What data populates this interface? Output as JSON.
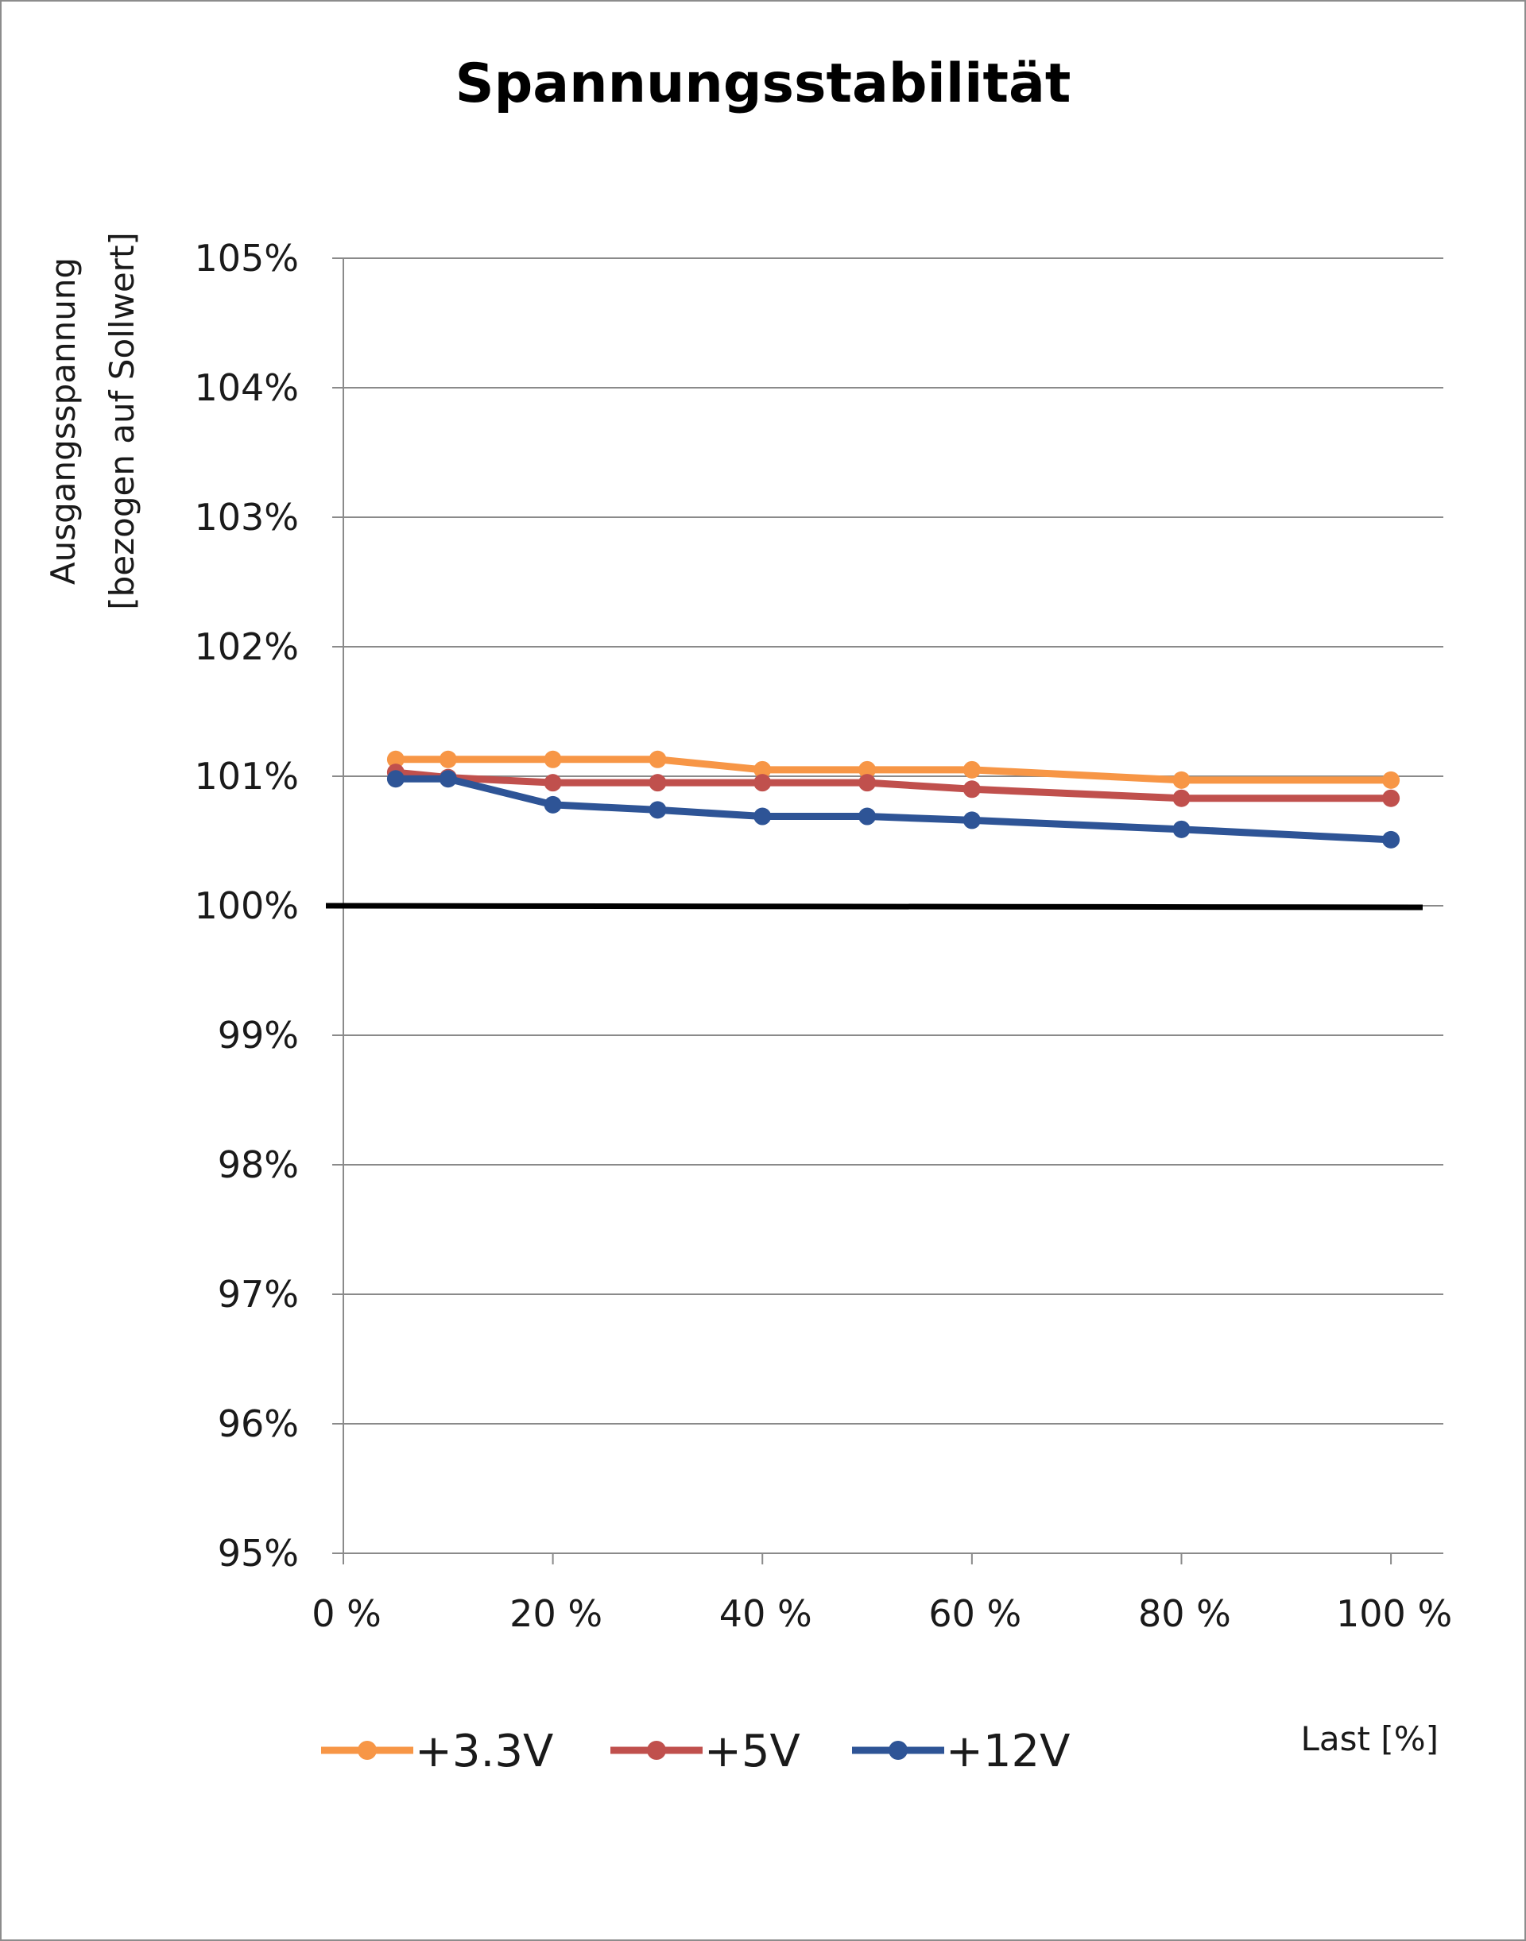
{
  "chart_data": {
    "type": "line",
    "title": "Spannungsstabilität",
    "ylabel_lines": [
      "Ausgangsspannung",
      "[bezogen auf Sollwert]"
    ],
    "xlabel": "Last [%]",
    "xlim": [
      0,
      105
    ],
    "ylim": [
      95,
      105
    ],
    "x_ticks": [
      0,
      20,
      40,
      60,
      80,
      100
    ],
    "x_tick_labels": [
      "0 %",
      "20 %",
      "40 %",
      "60 %",
      "80 %",
      "100 %"
    ],
    "y_ticks": [
      95,
      96,
      97,
      98,
      99,
      100,
      101,
      102,
      103,
      104,
      105
    ],
    "y_tick_labels": [
      "95%",
      "96%",
      "97%",
      "98%",
      "99%",
      "100%",
      "101%",
      "102%",
      "103%",
      "104%",
      "105%"
    ],
    "grid": true,
    "legend_position": "bottom",
    "reference_line": {
      "y": 100,
      "color": "#000000"
    },
    "x": [
      5,
      10,
      20,
      30,
      40,
      50,
      60,
      80,
      100
    ],
    "series": [
      {
        "name": "+3.3V",
        "color": "#f79646",
        "values": [
          101.13,
          101.13,
          101.13,
          101.13,
          101.05,
          101.05,
          101.05,
          100.97,
          100.97
        ]
      },
      {
        "name": "+5V",
        "color": "#c0504d",
        "values": [
          101.03,
          100.99,
          100.95,
          100.95,
          100.95,
          100.95,
          100.9,
          100.83,
          100.83
        ]
      },
      {
        "name": "+12V",
        "color": "#2e5496",
        "values": [
          100.98,
          100.98,
          100.78,
          100.74,
          100.69,
          100.69,
          100.66,
          100.59,
          100.51
        ]
      }
    ]
  }
}
